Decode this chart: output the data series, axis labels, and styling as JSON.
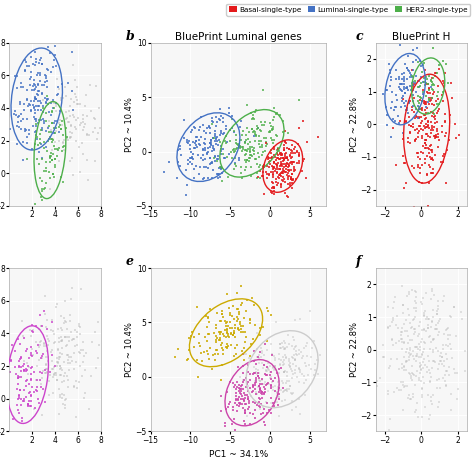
{
  "title_b": "BluePrint Luminal genes",
  "title_c": "BluePrint H",
  "label_b": "b",
  "label_c": "c",
  "label_e": "e",
  "label_f": "f",
  "xlabel": "PC1 ~ 34.1%",
  "ylabel_left_top": "PC2 ~ 10.4%",
  "ylabel_left_bot": "PC2 ~ 10.4%",
  "ylabel_right_top": "PC2 ~ 22.8%",
  "ylabel_right_bot": "PC2 ~ 22.8%",
  "legend_labels": [
    "Basal-single-type",
    "Luminal-single-type",
    "HER2-single-type"
  ],
  "color_basal": "#e41a1c",
  "color_luminal": "#4472c4",
  "color_HER2": "#4daf4a",
  "color_gray": "#bbbbbb",
  "color_pink": "#cc44cc",
  "color_yellow": "#ccaa00",
  "color_magenta": "#cc44aa",
  "bg_color": "#f7f7f7",
  "grid_color": "#ffffff",
  "spine_color": "#aaaaaa"
}
